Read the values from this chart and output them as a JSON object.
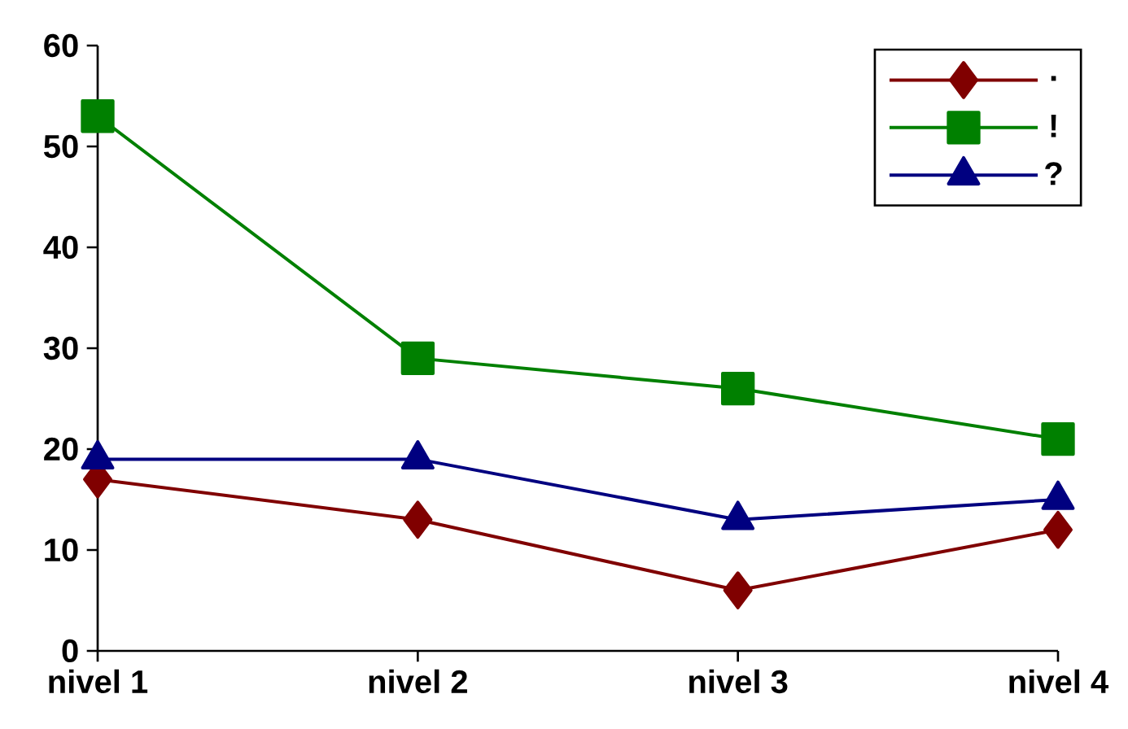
{
  "chart_data": {
    "type": "line",
    "categories": [
      "nivel 1",
      "nivel 2",
      "nivel 3",
      "nivel 4"
    ],
    "series": [
      {
        "name": ".",
        "color": "#800000",
        "marker": "diamond",
        "values": [
          17,
          13,
          6,
          12
        ]
      },
      {
        "name": "!",
        "color": "#008000",
        "marker": "square",
        "values": [
          53,
          29,
          26,
          21
        ]
      },
      {
        "name": "?",
        "color": "#000080",
        "marker": "triangle",
        "values": [
          19,
          19,
          13,
          15
        ]
      }
    ],
    "ylim": [
      0,
      60
    ],
    "yticks": [
      0,
      10,
      20,
      30,
      40,
      50,
      60
    ],
    "grid": false,
    "legend": "top right",
    "line_style": "solid"
  }
}
